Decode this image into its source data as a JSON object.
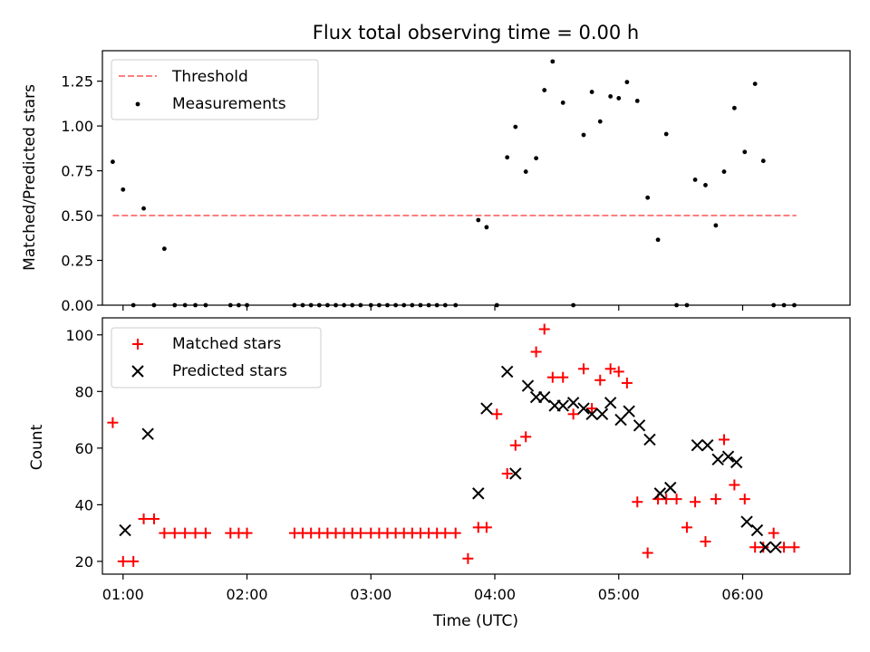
{
  "chart_data": [
    {
      "type": "scatter",
      "title": "Flux total observing time = 0.00 h",
      "xlabel": "",
      "ylabel": "Matched/Predicted stars",
      "xlim": [
        "00:50",
        "06:52"
      ],
      "ylim": [
        0,
        1.42
      ],
      "yticks": [
        "0.00",
        "0.25",
        "0.50",
        "0.75",
        "1.00",
        "1.25"
      ],
      "legend_position": "top-left",
      "threshold": {
        "name": "Threshold",
        "value": 0.5,
        "x_range": [
          "00:55",
          "06:26"
        ],
        "color": "#ff7f7f",
        "style": "dashed"
      },
      "series": [
        {
          "name": "Measurements",
          "color": "#000000",
          "marker": "dot",
          "x": [
            "00:55",
            "01:00",
            "01:05",
            "01:10",
            "01:15",
            "01:20",
            "01:25",
            "01:30",
            "01:35",
            "01:40",
            "01:52",
            "01:56",
            "02:00",
            "02:23",
            "02:27",
            "02:31",
            "02:35",
            "02:39",
            "02:43",
            "02:47",
            "02:51",
            "02:55",
            "03:00",
            "03:04",
            "03:08",
            "03:12",
            "03:16",
            "03:20",
            "03:24",
            "03:28",
            "03:32",
            "03:36",
            "03:41",
            "03:52",
            "03:56",
            "04:01",
            "04:06",
            "04:10",
            "04:15",
            "04:20",
            "04:24",
            "04:28",
            "04:33",
            "04:38",
            "04:43",
            "04:47",
            "04:51",
            "04:56",
            "05:00",
            "05:04",
            "05:09",
            "05:14",
            "05:19",
            "05:23",
            "05:28",
            "05:33",
            "05:37",
            "05:42",
            "05:47",
            "05:51",
            "05:56",
            "06:01",
            "06:06",
            "06:10",
            "06:15",
            "06:20",
            "06:25"
          ],
          "y": [
            0.8,
            0.645,
            0.0,
            0.54,
            0.0,
            0.315,
            0.0,
            0.0,
            0.0,
            0.0,
            0.0,
            0.0,
            0.0,
            0.0,
            0.0,
            0.0,
            0.0,
            0.0,
            0.0,
            0.0,
            0.0,
            0.0,
            0.0,
            0.0,
            0.0,
            0.0,
            0.0,
            0.0,
            0.0,
            0.0,
            0.0,
            0.0,
            0.0,
            0.475,
            0.435,
            0.0,
            0.825,
            0.995,
            0.745,
            0.82,
            1.2,
            1.36,
            1.13,
            0.0,
            0.95,
            1.19,
            1.025,
            1.165,
            1.155,
            1.245,
            1.14,
            0.6,
            0.365,
            0.955,
            0.0,
            0.0,
            0.7,
            0.67,
            0.445,
            0.745,
            1.1,
            0.855,
            1.235,
            0.805,
            0.0,
            0.0,
            0.0
          ]
        }
      ]
    },
    {
      "type": "scatter",
      "title": "",
      "xlabel": "Time (UTC)",
      "ylabel": "Count",
      "xlim": [
        "00:50",
        "06:52"
      ],
      "ylim": [
        15.5,
        106
      ],
      "xticks": [
        "01:00",
        "02:00",
        "03:00",
        "04:00",
        "05:00",
        "06:00"
      ],
      "yticks": [
        "20",
        "40",
        "60",
        "80",
        "100"
      ],
      "legend_position": "top-left",
      "series": [
        {
          "name": "Matched stars",
          "color": "#ff0000",
          "marker": "plus",
          "x": [
            "00:55",
            "01:00",
            "01:05",
            "01:10",
            "01:15",
            "01:20",
            "01:25",
            "01:30",
            "01:35",
            "01:40",
            "01:52",
            "01:56",
            "02:00",
            "02:23",
            "02:27",
            "02:31",
            "02:35",
            "02:39",
            "02:43",
            "02:47",
            "02:51",
            "02:55",
            "03:00",
            "03:04",
            "03:08",
            "03:12",
            "03:16",
            "03:20",
            "03:24",
            "03:28",
            "03:32",
            "03:36",
            "03:41",
            "03:47",
            "03:52",
            "03:56",
            "04:01",
            "04:06",
            "04:10",
            "04:15",
            "04:20",
            "04:24",
            "04:28",
            "04:33",
            "04:38",
            "04:43",
            "04:47",
            "04:51",
            "04:56",
            "05:00",
            "05:04",
            "05:09",
            "05:14",
            "05:19",
            "05:23",
            "05:28",
            "05:33",
            "05:37",
            "05:42",
            "05:47",
            "05:51",
            "05:56",
            "06:01",
            "06:06",
            "06:10",
            "06:15",
            "06:20",
            "06:25"
          ],
          "y": [
            69,
            20,
            20,
            35,
            35,
            30,
            30,
            30,
            30,
            30,
            30,
            30,
            30,
            30,
            30,
            30,
            30,
            30,
            30,
            30,
            30,
            30,
            30,
            30,
            30,
            30,
            30,
            30,
            30,
            30,
            30,
            30,
            30,
            21,
            32,
            32,
            72,
            51,
            61,
            64,
            94,
            102,
            85,
            85,
            72,
            88,
            74,
            84,
            88,
            87,
            83,
            41,
            23,
            42,
            42,
            42,
            32,
            41,
            27,
            42,
            63,
            47,
            42,
            25,
            25,
            30,
            25,
            25
          ]
        },
        {
          "name": "Predicted stars",
          "color": "#000000",
          "marker": "x",
          "x": [
            "01:01",
            "01:12",
            "03:52",
            "03:56",
            "04:06",
            "04:10",
            "04:16",
            "04:20",
            "04:24",
            "04:29",
            "04:33",
            "04:38",
            "04:43",
            "04:47",
            "04:52",
            "04:56",
            "05:01",
            "05:05",
            "05:10",
            "05:15",
            "05:20",
            "05:25",
            "05:38",
            "05:43",
            "05:48",
            "05:53",
            "05:57",
            "06:02",
            "06:07",
            "06:11",
            "06:16"
          ],
          "y": [
            31,
            65,
            44,
            74,
            87,
            51,
            82,
            78,
            78,
            75,
            75,
            76,
            74,
            72,
            72,
            76,
            70,
            73,
            68,
            63,
            44,
            46,
            61,
            61,
            56,
            57,
            55,
            34,
            31,
            25,
            25
          ]
        }
      ]
    }
  ]
}
